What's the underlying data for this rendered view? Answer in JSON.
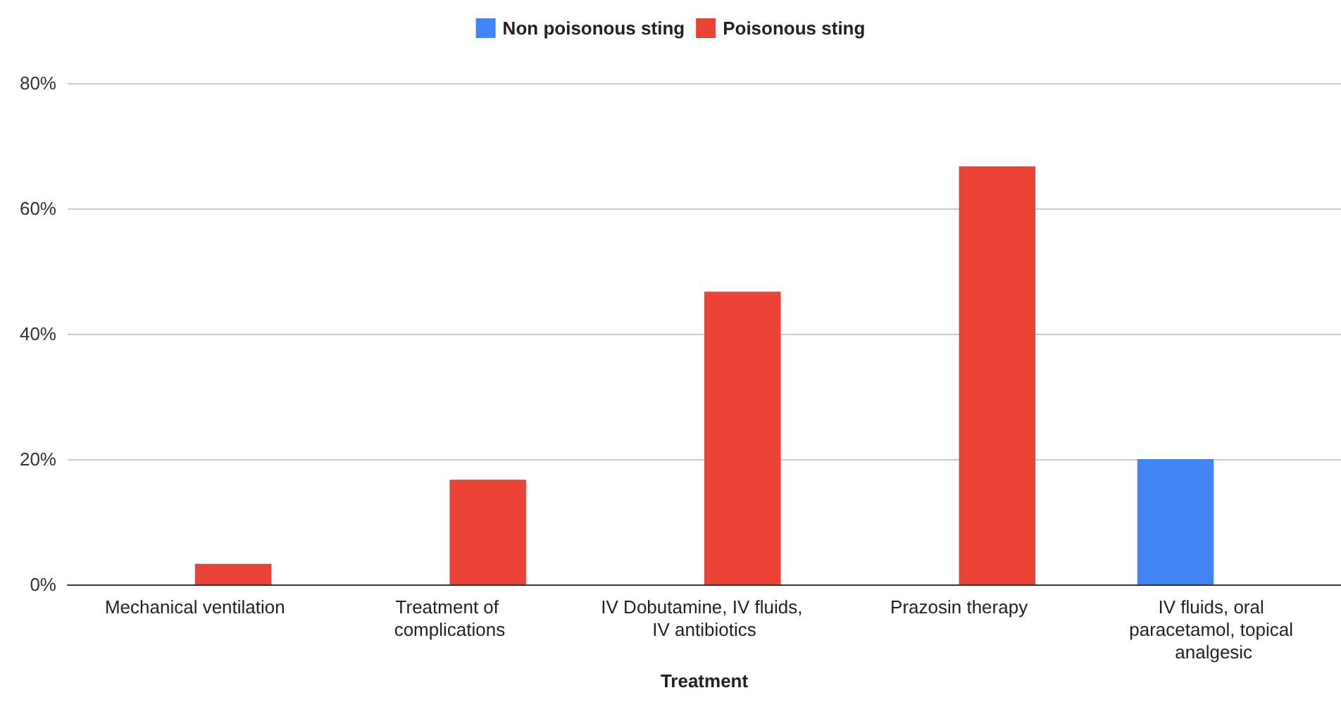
{
  "chart_data": {
    "type": "bar",
    "xlabel": "Treatment",
    "categories": [
      "Mechanical ventilation",
      "Treatment of complications",
      "IV Dobutamine, IV fluids, IV antibiotics",
      "Prazosin therapy",
      "IV fluids, oral paracetamol, topical analgesic"
    ],
    "series": [
      {
        "name": "Non poisonous sting",
        "color": "#4285f4",
        "values": [
          0,
          0,
          0,
          0,
          20
        ]
      },
      {
        "name": "Poisonous sting",
        "color": "#ea4335",
        "values": [
          3.3,
          16.7,
          46.7,
          66.7,
          0
        ]
      }
    ],
    "ylim": [
      0,
      80
    ],
    "yticks": [
      {
        "value": 0,
        "label": "0%"
      },
      {
        "value": 20,
        "label": "20%"
      },
      {
        "value": 40,
        "label": "40%"
      },
      {
        "value": 60,
        "label": "60%"
      },
      {
        "value": 80,
        "label": "80%"
      }
    ],
    "grid": "y",
    "legend": "top"
  }
}
